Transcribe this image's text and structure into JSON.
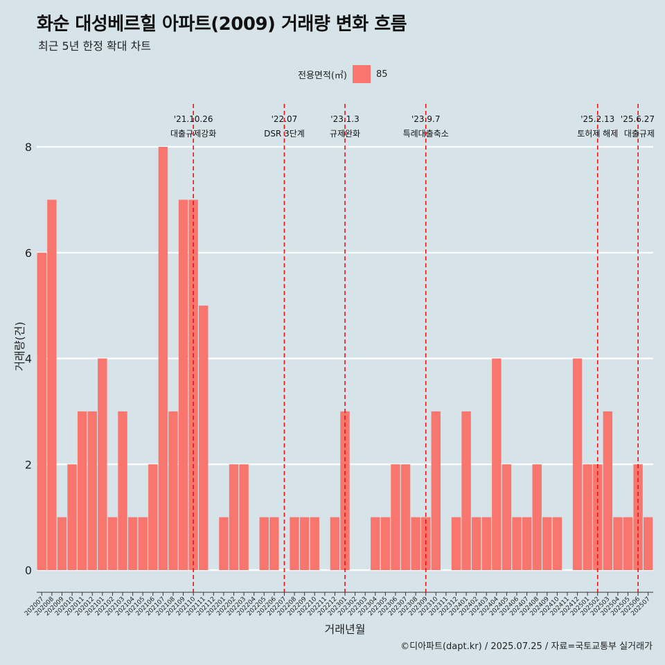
{
  "title": "화순 대성베르힐 아파트(2009) 거래량 변화 흐름",
  "subtitle": "최근 5년 한정 확대 차트",
  "legend": {
    "title": "전용면적(㎡)",
    "items": [
      {
        "label": "85",
        "color": "#f8766d"
      }
    ]
  },
  "caption": "©디아파트(dapt.kr) / 2025.07.25 / 자료=국토교통부 실거래가",
  "colors": {
    "background": "#d6e4ea",
    "bar": "#f8766d",
    "event_line": "#ee1111",
    "grid": "#ffffff"
  },
  "chart_data": {
    "type": "bar",
    "xlabel": "거래년월",
    "ylabel": "거래량(건)",
    "ylim": [
      0,
      8
    ],
    "yticks": [
      0,
      2,
      4,
      6,
      8
    ],
    "grid": true,
    "legend_position": "top",
    "categories": [
      "202007",
      "202008",
      "202009",
      "202010",
      "202011",
      "202012",
      "202101",
      "202102",
      "202103",
      "202104",
      "202105",
      "202106",
      "202107",
      "202108",
      "202109",
      "202110",
      "202111",
      "202112",
      "202201",
      "202202",
      "202203",
      "202204",
      "202205",
      "202206",
      "202207",
      "202208",
      "202209",
      "202210",
      "202211",
      "202212",
      "202301",
      "202302",
      "202303",
      "202304",
      "202305",
      "202306",
      "202307",
      "202308",
      "202309",
      "202310",
      "202311",
      "202312",
      "202401",
      "202402",
      "202403",
      "202404",
      "202405",
      "202406",
      "202407",
      "202408",
      "202409",
      "202410",
      "202411",
      "202412",
      "202501",
      "202502",
      "202503",
      "202504",
      "202505",
      "202506",
      "202507"
    ],
    "series": [
      {
        "name": "85",
        "values": [
          6,
          7,
          1,
          2,
          3,
          3,
          4,
          1,
          3,
          1,
          1,
          2,
          8,
          3,
          7,
          7,
          5,
          0,
          1,
          2,
          2,
          0,
          1,
          1,
          0,
          1,
          1,
          1,
          0,
          1,
          3,
          0,
          0,
          1,
          1,
          2,
          2,
          1,
          1,
          3,
          0,
          1,
          3,
          1,
          1,
          4,
          2,
          1,
          1,
          2,
          1,
          1,
          0,
          4,
          2,
          2,
          3,
          1,
          1,
          2,
          1
        ]
      }
    ],
    "annotations": [
      {
        "at": "202110",
        "date": "'21.10.26",
        "label": "대출규제강화"
      },
      {
        "at": "202207",
        "date": "'22.07",
        "label": "DSR 3단계"
      },
      {
        "at": "202301",
        "date": "'23.1.3",
        "label": "규제완화"
      },
      {
        "at": "202309",
        "date": "'23.9.7",
        "label": "특례대출축소"
      },
      {
        "at": "202502",
        "date": "'25.2.13",
        "label": "토허제 해제"
      },
      {
        "at": "202506",
        "date": "'25.6.27",
        "label": "대출규제"
      }
    ]
  }
}
